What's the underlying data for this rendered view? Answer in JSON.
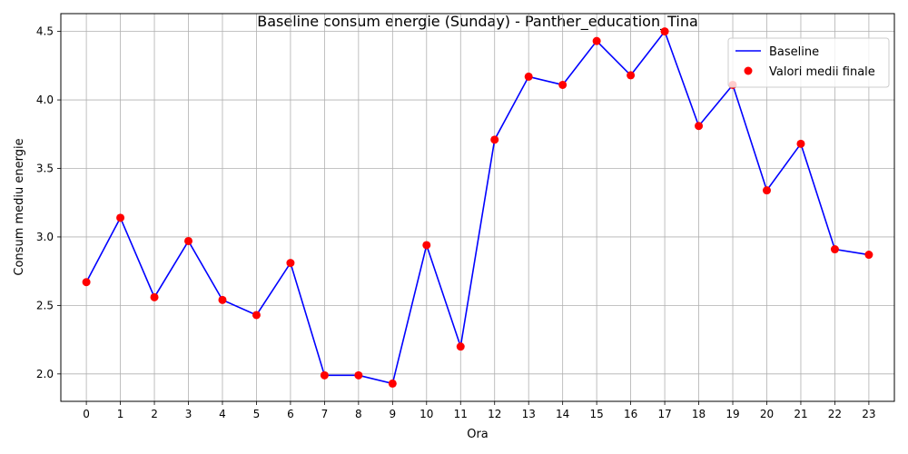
{
  "chart_data": {
    "type": "line",
    "title": "Baseline consum energie (Sunday) - Panther_education_Tina",
    "xlabel": "Ora",
    "ylabel": "Consum mediu energie",
    "x": [
      0,
      1,
      2,
      3,
      4,
      5,
      6,
      7,
      8,
      9,
      10,
      11,
      12,
      13,
      14,
      15,
      16,
      17,
      18,
      19,
      20,
      21,
      22,
      23
    ],
    "series": [
      {
        "name": "Baseline",
        "kind": "line",
        "color": "#0000ff",
        "values": [
          2.67,
          3.14,
          2.56,
          2.97,
          2.54,
          2.43,
          2.81,
          1.99,
          1.99,
          1.93,
          2.94,
          2.2,
          3.71,
          4.17,
          4.11,
          4.43,
          4.18,
          4.5,
          3.81,
          4.11,
          3.34,
          3.68,
          2.91,
          2.87
        ]
      },
      {
        "name": "Valori medii finale",
        "kind": "scatter",
        "color": "#ff0000",
        "values": [
          2.67,
          3.14,
          2.56,
          2.97,
          2.54,
          2.43,
          2.81,
          1.99,
          1.99,
          1.93,
          2.94,
          2.2,
          3.71,
          4.17,
          4.11,
          4.43,
          4.18,
          4.5,
          3.81,
          4.11,
          3.34,
          3.68,
          2.91,
          2.87
        ]
      }
    ],
    "xlim": [
      -0.75,
      23.75
    ],
    "ylim": [
      1.8,
      4.63
    ],
    "yticks": [
      "2.0",
      "2.5",
      "3.0",
      "3.5",
      "4.0",
      "4.5"
    ],
    "xticks": [
      "0",
      "1",
      "2",
      "3",
      "4",
      "5",
      "6",
      "7",
      "8",
      "9",
      "10",
      "11",
      "12",
      "13",
      "14",
      "15",
      "16",
      "17",
      "18",
      "19",
      "20",
      "21",
      "22",
      "23"
    ],
    "grid": true,
    "legend_position": "top-right"
  }
}
